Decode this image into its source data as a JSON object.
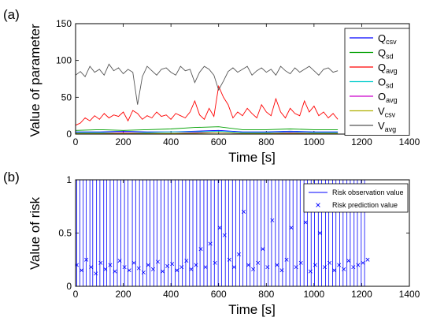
{
  "chart_data": [
    {
      "type": "line",
      "panel_label": "(a)",
      "xlabel": "Time [s]",
      "ylabel": "Value of parameter",
      "xlim": [
        0,
        1400
      ],
      "ylim": [
        0,
        150
      ],
      "xticks": [
        0,
        200,
        400,
        600,
        800,
        1000,
        1200,
        1400
      ],
      "yticks": [
        0,
        50,
        100,
        150
      ],
      "legend_position": "right",
      "series": [
        {
          "name_main": "Q",
          "name_sub": "csv",
          "color": "#0000ff",
          "x": [
            0,
            100,
            200,
            300,
            400,
            500,
            600,
            700,
            800,
            900,
            1000,
            1100
          ],
          "y": [
            3,
            3,
            4,
            3,
            3,
            4,
            5,
            3,
            3,
            4,
            3,
            3
          ]
        },
        {
          "name_main": "Q",
          "name_sub": "sd",
          "color": "#00a000",
          "x": [
            0,
            100,
            200,
            300,
            400,
            500,
            600,
            700,
            800,
            900,
            1000,
            1100
          ],
          "y": [
            5,
            6,
            5,
            6,
            7,
            9,
            10,
            6,
            6,
            7,
            6,
            6
          ]
        },
        {
          "name_main": "Q",
          "name_sub": "avg",
          "color": "#ff0000",
          "x": [
            0,
            20,
            40,
            60,
            80,
            100,
            120,
            140,
            160,
            180,
            200,
            220,
            240,
            260,
            280,
            300,
            320,
            340,
            360,
            380,
            400,
            420,
            440,
            460,
            480,
            500,
            520,
            540,
            560,
            580,
            600,
            620,
            640,
            660,
            680,
            700,
            720,
            740,
            760,
            780,
            800,
            820,
            840,
            860,
            880,
            900,
            920,
            940,
            960,
            980,
            1000,
            1020,
            1040,
            1060,
            1080,
            1100
          ],
          "y": [
            12,
            15,
            22,
            18,
            25,
            20,
            28,
            22,
            26,
            24,
            30,
            18,
            32,
            28,
            20,
            25,
            22,
            30,
            24,
            26,
            20,
            28,
            25,
            22,
            30,
            45,
            26,
            20,
            35,
            24,
            65,
            50,
            40,
            22,
            30,
            25,
            35,
            28,
            22,
            40,
            30,
            25,
            48,
            30,
            22,
            35,
            28,
            25,
            45,
            30,
            38,
            25,
            30,
            22,
            28,
            20
          ]
        },
        {
          "name_main": "O",
          "name_sub": "sd",
          "color": "#00cccc",
          "x": [
            0,
            100,
            200,
            300,
            400,
            500,
            600,
            700,
            800,
            900,
            1000,
            1100
          ],
          "y": [
            2,
            2,
            2,
            2,
            3,
            3,
            4,
            2,
            2,
            3,
            2,
            2
          ]
        },
        {
          "name_main": "O",
          "name_sub": "avg",
          "color": "#cc00cc",
          "x": [
            0,
            100,
            200,
            300,
            400,
            500,
            600,
            700,
            800,
            900,
            1000,
            1100
          ],
          "y": [
            1,
            1,
            2,
            1,
            1,
            2,
            2,
            1,
            1,
            2,
            1,
            1
          ]
        },
        {
          "name_main": "V",
          "name_sub": "csv",
          "color": "#b0b000",
          "x": [
            0,
            100,
            200,
            300,
            400,
            500,
            600,
            700,
            800,
            900,
            1000,
            1100
          ],
          "y": [
            1,
            1,
            1,
            1,
            1,
            1,
            2,
            1,
            1,
            1,
            1,
            1
          ]
        },
        {
          "name_main": "V",
          "name_sub": "avg",
          "color": "#555555",
          "x": [
            0,
            20,
            40,
            60,
            80,
            100,
            120,
            140,
            160,
            180,
            200,
            220,
            240,
            260,
            280,
            300,
            320,
            340,
            360,
            380,
            400,
            420,
            440,
            460,
            480,
            500,
            520,
            540,
            560,
            580,
            600,
            620,
            640,
            660,
            680,
            700,
            720,
            740,
            760,
            780,
            800,
            820,
            840,
            860,
            880,
            900,
            920,
            940,
            960,
            980,
            1000,
            1020,
            1040,
            1060,
            1080,
            1100
          ],
          "y": [
            80,
            85,
            78,
            92,
            84,
            88,
            80,
            95,
            86,
            90,
            82,
            88,
            84,
            40,
            78,
            92,
            86,
            80,
            88,
            90,
            84,
            80,
            92,
            86,
            88,
            70,
            84,
            92,
            88,
            80,
            60,
            72,
            85,
            90,
            84,
            88,
            92,
            80,
            86,
            90,
            84,
            88,
            80,
            92,
            86,
            82,
            90,
            84,
            88,
            92,
            86,
            80,
            88,
            90,
            84,
            86
          ]
        }
      ]
    },
    {
      "type": "scatter",
      "panel_label": "(b)",
      "xlabel": "Time [s]",
      "ylabel": "Value of risk",
      "xlim": [
        0,
        1400
      ],
      "ylim": [
        0,
        1
      ],
      "xticks": [
        0,
        200,
        400,
        600,
        800,
        1000,
        1200,
        1400
      ],
      "yticks": [
        0,
        0.5,
        1
      ],
      "legend_position": "top-right",
      "series": [
        {
          "name": "Risk observation value",
          "style": "vertical-lines",
          "color": "#0000ff",
          "x": [
            5,
            18,
            32,
            45,
            60,
            72,
            88,
            102,
            118,
            130,
            145,
            160,
            175,
            190,
            205,
            220,
            238,
            252,
            268,
            282,
            298,
            312,
            328,
            342,
            358,
            372,
            388,
            402,
            418,
            432,
            448,
            462,
            478,
            492,
            508,
            522,
            538,
            552,
            568,
            582,
            598,
            612,
            628,
            642,
            658,
            672,
            688,
            702,
            718,
            732,
            748,
            762,
            778,
            792,
            808,
            822,
            838,
            852,
            868,
            882,
            898,
            912,
            928,
            942,
            958,
            972,
            988,
            1002,
            1018,
            1032,
            1048,
            1062,
            1078,
            1092,
            1108,
            1122,
            1138,
            1152,
            1168,
            1182,
            1198,
            1212
          ],
          "y": [
            1,
            1,
            1,
            1,
            1,
            1,
            1,
            1,
            1,
            1,
            1,
            1,
            1,
            1,
            1,
            1,
            1,
            1,
            1,
            1,
            1,
            1,
            1,
            1,
            1,
            1,
            1,
            1,
            1,
            1,
            1,
            1,
            1,
            1,
            1,
            1,
            1,
            1,
            1,
            1,
            1,
            1,
            1,
            1,
            1,
            1,
            1,
            1,
            1,
            1,
            1,
            1,
            1,
            1,
            1,
            1,
            1,
            1,
            1,
            1,
            1,
            1,
            1,
            1,
            1,
            1,
            1,
            1,
            1,
            1,
            1,
            1,
            1,
            1,
            1,
            1,
            1,
            1,
            1,
            1,
            1,
            1
          ]
        },
        {
          "name": "Risk prediction value",
          "style": "x-markers",
          "color": "#0000ff",
          "x": [
            5,
            25,
            45,
            65,
            85,
            105,
            125,
            145,
            165,
            185,
            205,
            225,
            245,
            265,
            285,
            305,
            325,
            345,
            365,
            385,
            405,
            425,
            445,
            465,
            485,
            505,
            525,
            545,
            565,
            585,
            605,
            625,
            645,
            665,
            685,
            705,
            725,
            745,
            765,
            785,
            805,
            825,
            845,
            865,
            885,
            905,
            925,
            945,
            965,
            985,
            1005,
            1025,
            1045,
            1065,
            1085,
            1105,
            1125,
            1145,
            1165,
            1185,
            1205,
            1225
          ],
          "y": [
            0.2,
            0.15,
            0.25,
            0.18,
            0.12,
            0.22,
            0.16,
            0.2,
            0.14,
            0.24,
            0.18,
            0.15,
            0.22,
            0.17,
            0.13,
            0.2,
            0.16,
            0.23,
            0.14,
            0.19,
            0.21,
            0.15,
            0.18,
            0.24,
            0.16,
            0.2,
            0.35,
            0.18,
            0.4,
            0.22,
            0.55,
            0.48,
            0.25,
            0.18,
            0.3,
            0.7,
            0.2,
            0.16,
            0.22,
            0.35,
            0.18,
            0.62,
            0.2,
            0.15,
            0.25,
            0.55,
            0.18,
            0.22,
            0.6,
            0.14,
            0.2,
            0.5,
            0.18,
            0.22,
            0.15,
            0.2,
            0.16,
            0.24,
            0.18,
            0.2,
            0.22,
            0.25
          ]
        }
      ]
    }
  ]
}
